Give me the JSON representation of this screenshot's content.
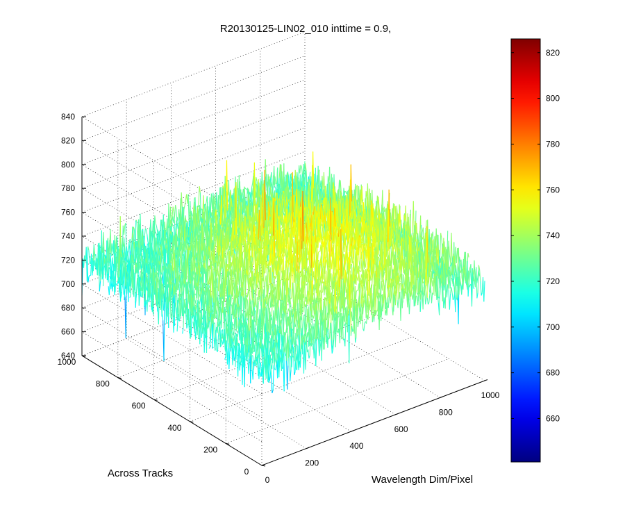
{
  "chart_data": {
    "type": "surface",
    "title": "R20130125-LIN02_010 inttime = 0.9,",
    "xlabel": "Wavelength Dim/Pixel",
    "ylabel": "Across Tracks",
    "zlabel": "",
    "xlim": [
      0,
      1000
    ],
    "ylim": [
      0,
      1000
    ],
    "zlim": [
      640,
      840
    ],
    "x_ticks": [
      "0",
      "200",
      "400",
      "600",
      "800",
      "1000"
    ],
    "y_ticks": [
      "0",
      "200",
      "400",
      "600",
      "800",
      "1000"
    ],
    "z_ticks": [
      "640",
      "660",
      "680",
      "700",
      "720",
      "740",
      "760",
      "780",
      "800",
      "820",
      "840"
    ],
    "grid": true,
    "colormap": "jet",
    "colorbar": {
      "range": [
        641,
        826
      ],
      "ticks": [
        "660",
        "680",
        "700",
        "720",
        "740",
        "760",
        "780",
        "800",
        "820"
      ]
    },
    "surface_profile": {
      "x": [
        0,
        200,
        400,
        600,
        800,
        1000
      ],
      "y": [
        0,
        200,
        400,
        600,
        800,
        1000
      ],
      "z_mean": [
        [
          718,
          722,
          732,
          735,
          732,
          722
        ],
        [
          720,
          728,
          742,
          745,
          740,
          726
        ],
        [
          722,
          736,
          748,
          752,
          746,
          730
        ],
        [
          722,
          732,
          744,
          746,
          740,
          728
        ],
        [
          718,
          724,
          730,
          732,
          728,
          720
        ],
        [
          716,
          720,
          722,
          724,
          722,
          718
        ]
      ],
      "noise_amplitude": 28
    }
  }
}
